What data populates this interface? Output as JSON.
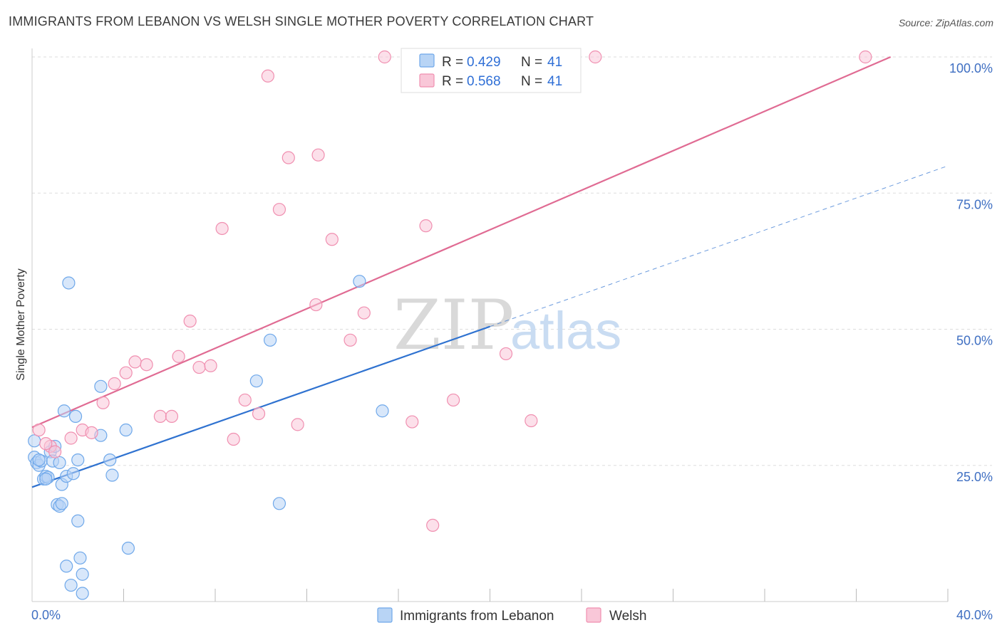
{
  "title": "IMMIGRANTS FROM LEBANON VS WELSH SINGLE MOTHER POVERTY CORRELATION CHART",
  "source": "Source: ZipAtlas.com",
  "watermark": {
    "zip": "ZIP",
    "atlas": "atlas"
  },
  "chart_data": {
    "type": "scatter",
    "title": "IMMIGRANTS FROM LEBANON VS WELSH SINGLE MOTHER POVERTY CORRELATION CHART",
    "xlabel": "",
    "ylabel": "Single Mother Poverty",
    "xlim": [
      0,
      40
    ],
    "ylim": [
      0,
      100
    ],
    "x_ticks": [
      {
        "value": 0,
        "label": "0.0%"
      },
      {
        "value": 40,
        "label": "40.0%"
      }
    ],
    "y_ticks": [
      {
        "value": 25,
        "label": "25.0%"
      },
      {
        "value": 50,
        "label": "50.0%"
      },
      {
        "value": 75,
        "label": "75.0%"
      },
      {
        "value": 100,
        "label": "100.0%"
      }
    ],
    "grid": "horizontal dashed",
    "legend_position": "top-center",
    "series": [
      {
        "name": "Immigrants from Lebanon",
        "color": "#6fa8ea",
        "fill": "#b8d4f5",
        "line_color": "#2f72d0",
        "R": "0.429",
        "N": "41",
        "trend": {
          "x0": 0,
          "y0": 21.0,
          "x1": 20,
          "y1": 50.5,
          "dashed_to_x": 40,
          "dashed_to_y": 80.0
        },
        "points": [
          [
            0.1,
            29.5
          ],
          [
            0.1,
            26.5
          ],
          [
            0.2,
            25.5
          ],
          [
            0.3,
            25.0
          ],
          [
            0.4,
            25.8
          ],
          [
            0.5,
            22.5
          ],
          [
            0.6,
            23.0
          ],
          [
            0.7,
            22.8
          ],
          [
            0.8,
            27.5
          ],
          [
            0.9,
            25.8
          ],
          [
            1.0,
            28.5
          ],
          [
            1.1,
            17.8
          ],
          [
            1.2,
            17.5
          ],
          [
            1.3,
            18.0
          ],
          [
            1.3,
            21.5
          ],
          [
            1.4,
            35.0
          ],
          [
            1.5,
            6.5
          ],
          [
            1.5,
            23.0
          ],
          [
            1.7,
            3.0
          ],
          [
            1.8,
            23.5
          ],
          [
            1.6,
            58.5
          ],
          [
            1.9,
            34.0
          ],
          [
            2.0,
            26.0
          ],
          [
            2.0,
            14.8
          ],
          [
            2.1,
            8.0
          ],
          [
            2.2,
            5.0
          ],
          [
            2.2,
            1.5
          ],
          [
            3.0,
            39.5
          ],
          [
            3.0,
            30.5
          ],
          [
            3.4,
            26.0
          ],
          [
            3.5,
            23.2
          ],
          [
            4.1,
            31.5
          ],
          [
            4.2,
            9.8
          ],
          [
            9.8,
            40.5
          ],
          [
            10.4,
            48.0
          ],
          [
            10.8,
            18.0
          ],
          [
            14.3,
            58.8
          ],
          [
            15.3,
            35.0
          ],
          [
            0.3,
            26.0
          ],
          [
            0.6,
            22.5
          ],
          [
            1.2,
            25.5
          ]
        ]
      },
      {
        "name": "Welsh",
        "color": "#f08fb0",
        "fill": "#f9c7d8",
        "line_color": "#e06b93",
        "R": "0.568",
        "N": "41",
        "trend": {
          "x0": 0,
          "y0": 32.0,
          "x1": 37.5,
          "y1": 100.0
        },
        "points": [
          [
            0.3,
            31.5
          ],
          [
            0.8,
            28.5
          ],
          [
            1.0,
            27.5
          ],
          [
            1.7,
            30.0
          ],
          [
            2.2,
            31.5
          ],
          [
            2.6,
            31.0
          ],
          [
            3.1,
            36.5
          ],
          [
            3.6,
            40.0
          ],
          [
            4.1,
            42.0
          ],
          [
            4.5,
            44.0
          ],
          [
            5.0,
            43.5
          ],
          [
            5.6,
            34.0
          ],
          [
            6.1,
            34.0
          ],
          [
            6.4,
            45.0
          ],
          [
            6.9,
            51.5
          ],
          [
            7.3,
            43.0
          ],
          [
            7.8,
            43.3
          ],
          [
            8.3,
            68.5
          ],
          [
            8.8,
            29.8
          ],
          [
            9.3,
            37.0
          ],
          [
            9.9,
            34.5
          ],
          [
            10.3,
            96.5
          ],
          [
            10.8,
            72.0
          ],
          [
            11.2,
            81.5
          ],
          [
            11.6,
            32.5
          ],
          [
            12.4,
            54.5
          ],
          [
            12.5,
            82.0
          ],
          [
            13.1,
            66.5
          ],
          [
            13.9,
            48.0
          ],
          [
            14.5,
            53.0
          ],
          [
            15.4,
            100.0
          ],
          [
            16.6,
            33.0
          ],
          [
            17.2,
            69.0
          ],
          [
            17.5,
            14.0
          ],
          [
            18.4,
            37.0
          ],
          [
            19.4,
            100.0
          ],
          [
            20.7,
            45.5
          ],
          [
            21.8,
            33.2
          ],
          [
            24.6,
            100.0
          ],
          [
            36.4,
            100.0
          ],
          [
            0.6,
            29.0
          ]
        ]
      }
    ]
  }
}
